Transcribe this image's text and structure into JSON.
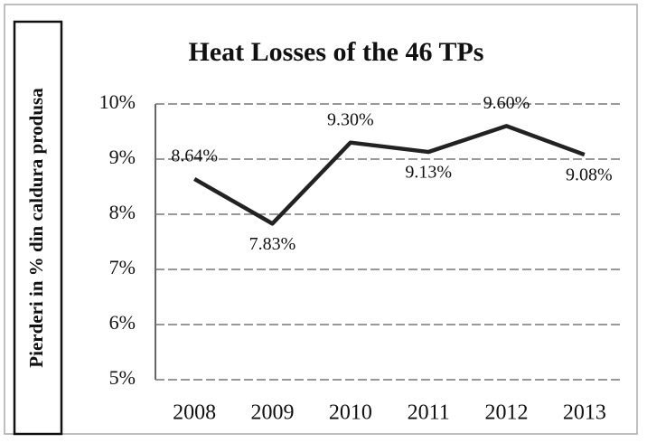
{
  "chart_data": {
    "type": "line",
    "title": "Heat Losses of the 46 TPs",
    "y_label": "Pierderi in % din caldura produsa",
    "categories": [
      "2008",
      "2009",
      "2010",
      "2011",
      "2012",
      "2013"
    ],
    "series": [
      {
        "name": "Heat losses",
        "color": "#222222",
        "values": [
          8.64,
          7.83,
          9.3,
          9.13,
          9.6,
          9.08
        ],
        "value_labels": [
          "8.64%",
          "7.83%",
          "9.30%",
          "9.13%",
          "9.60%",
          "9.08%"
        ]
      }
    ],
    "ylim": [
      5,
      10
    ],
    "yticks": [
      {
        "value": 5,
        "label": "5%"
      },
      {
        "value": 6,
        "label": "6%"
      },
      {
        "value": 7,
        "label": "7%"
      },
      {
        "value": 8,
        "label": "8%"
      },
      {
        "value": 9,
        "label": "9%"
      },
      {
        "value": 10,
        "label": "10%"
      }
    ],
    "grid": true
  }
}
